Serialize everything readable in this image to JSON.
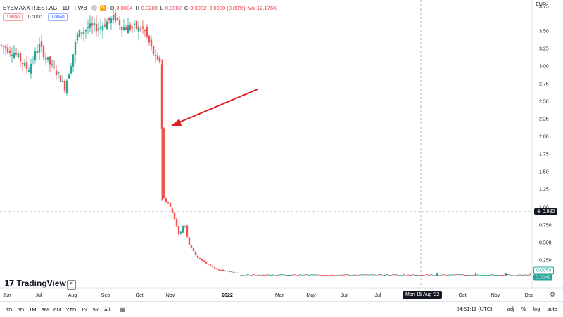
{
  "header": {
    "title": "EYEMAXX R.EST.AG · 1D · FWB",
    "badge": "D",
    "ohlc": [
      {
        "label": "O",
        "value": "0.0004"
      },
      {
        "label": "H",
        "value": "0.0200"
      },
      {
        "label": "L",
        "value": "0.0002"
      },
      {
        "label": "C",
        "value": "0.0002"
      }
    ],
    "change": "0.0000 (0.00%)",
    "volume": "Vol 12.176K"
  },
  "quote": {
    "sell": "0.0040",
    "spread": "0.0000",
    "buy": "0.0040"
  },
  "currency": "EUR",
  "y_ticks": [
    "3.75",
    "3.50",
    "3.25",
    "3.00",
    "2.75",
    "2.50",
    "2.25",
    "2.00",
    "1.75",
    "1.50",
    "1.25",
    "1.00",
    "0.750",
    "0.500",
    "0.250"
  ],
  "price_tags": {
    "cross_price": "0.932",
    "last_price": "0.0040",
    "prev_price": "0.0050"
  },
  "x_ticks": [
    "Jun",
    "Jul",
    "Aug",
    "Sep",
    "Oct",
    "Nov",
    "2022",
    "Mar",
    "May",
    "Jun",
    "Jul",
    "Oct",
    "Nov",
    "Dec"
  ],
  "x_cross_label": "Mon 15 Aug '22",
  "brand": "TradingView",
  "ranges": [
    "1D",
    "5D",
    "1M",
    "3M",
    "6M",
    "YTD",
    "1Y",
    "5Y",
    "All"
  ],
  "clock": "04:51:11 (UTC)",
  "scale_options": [
    "adj",
    "%",
    "log",
    "auto"
  ],
  "colors": {
    "up": "#26a69a",
    "down": "#ef5350",
    "arrow": "#e02020",
    "crosshair": "#9598a1"
  },
  "chart_data": {
    "type": "candlestick",
    "y_axis_unit": "EUR",
    "ylim": [
      0,
      3.9
    ],
    "annotation": "red arrow pointing to the sharp price drop in October",
    "approx_close_path": [
      {
        "period": "Jun",
        "close": 3.3
      },
      {
        "period": "Jul",
        "close": 3.1
      },
      {
        "period": "Aug",
        "close": 3.45
      },
      {
        "period": "Sep",
        "close": 3.65
      },
      {
        "period": "Oct",
        "close": 3.5
      },
      {
        "period": "Oct (late)",
        "close": 3.1
      },
      {
        "period": "Oct (drop)",
        "close": 1.1
      },
      {
        "period": "Nov",
        "close": 0.55
      },
      {
        "period": "Dec",
        "close": 0.2
      },
      {
        "period": "2022",
        "close": 0.08
      },
      {
        "period": "Mar",
        "close": 0.03
      },
      {
        "period": "Dec",
        "close": 0.004
      }
    ]
  }
}
